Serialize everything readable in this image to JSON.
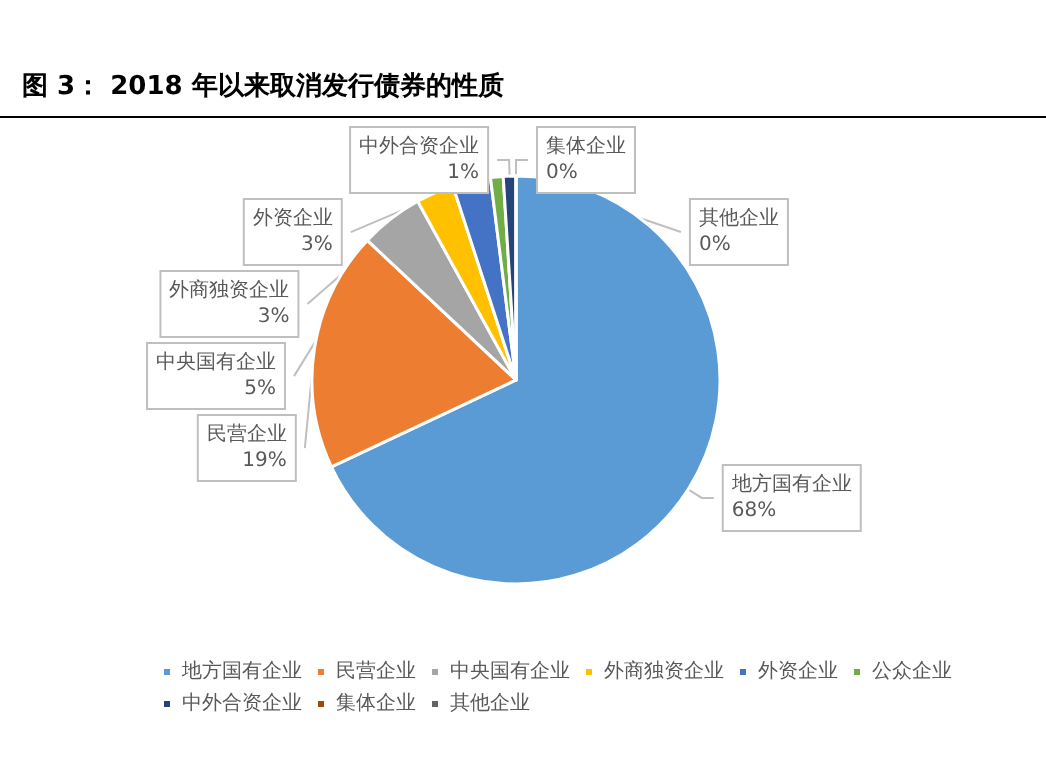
{
  "chart_data": {
    "type": "pie",
    "title": "图 3： 2018 年以来取消发行债券的性质",
    "categories": [
      "地方国有企业",
      "民营企业",
      "中央国有企业",
      "外商独资企业",
      "外资企业",
      "公众企业",
      "中外合资企业",
      "集体企业",
      "其他企业"
    ],
    "values": [
      68,
      19,
      5,
      3,
      3,
      1,
      1,
      0,
      0
    ],
    "value_labels": [
      "68%",
      "19%",
      "5%",
      "3%",
      "3%",
      null,
      "1%",
      "0%",
      "0%"
    ],
    "colors": [
      "#5b9bd5",
      "#ed7d31",
      "#a5a5a5",
      "#ffc000",
      "#4472c4",
      "#70ad47",
      "#264478",
      "#9e480e",
      "#636363"
    ],
    "legend": "bottom"
  }
}
